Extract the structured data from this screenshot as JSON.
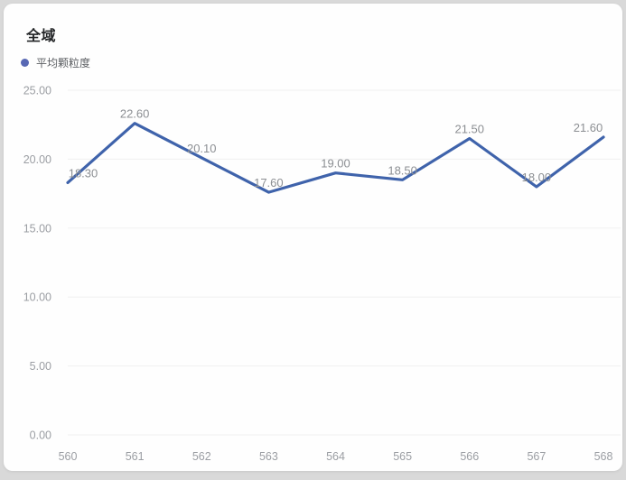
{
  "page": {
    "title": "全域"
  },
  "legend": {
    "items": [
      {
        "label": "平均颗粒度",
        "color": "#5868b4"
      }
    ]
  },
  "chart_data": {
    "type": "line",
    "title": "全域",
    "xlabel": "",
    "ylabel": "",
    "categories": [
      "560",
      "561",
      "562",
      "563",
      "564",
      "565",
      "566",
      "567",
      "568"
    ],
    "series": [
      {
        "name": "平均颗粒度",
        "values": [
          18.3,
          22.6,
          20.1,
          17.6,
          19.0,
          18.5,
          21.5,
          18.0,
          21.6
        ],
        "display_values": [
          "18.30",
          "22.60",
          "20.10",
          "17.60",
          "19.00",
          "18.50",
          "21.50",
          "18.00",
          "21.60"
        ],
        "color": "#3f63ab"
      }
    ],
    "ylim": [
      0,
      25
    ],
    "y_ticks": [
      {
        "value": 0,
        "label": "0.00"
      },
      {
        "value": 5,
        "label": "5.00"
      },
      {
        "value": 10,
        "label": "10.00"
      },
      {
        "value": 15,
        "label": "15.00"
      },
      {
        "value": 20,
        "label": "20.00"
      },
      {
        "value": 25,
        "label": "25.00"
      }
    ],
    "grid": true,
    "legend_position": "top-left",
    "point_markers": false
  },
  "colors": {
    "line": "#3f63ab",
    "legend_dot": "#5868b4",
    "grid": "#f0f0f0",
    "axis_text": "#9b9ea3",
    "point_label": "#8c8f93",
    "card_bg": "#fefefe",
    "page_bg": "#d9d9d9"
  }
}
